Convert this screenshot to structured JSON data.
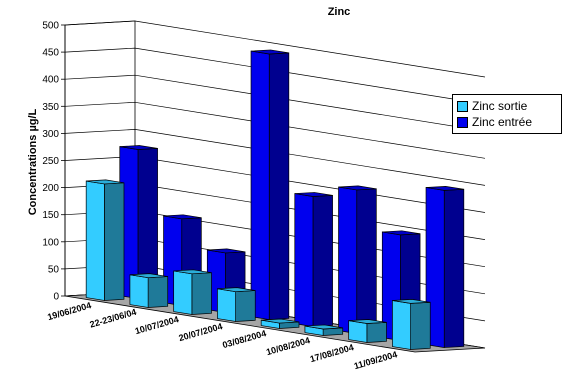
{
  "chart_data": {
    "type": "bar",
    "title": "Zinc",
    "xlabel": "",
    "ylabel": "Concentrations µg/L",
    "ylim": [
      0,
      500
    ],
    "yticks": [
      0,
      50,
      100,
      150,
      200,
      250,
      300,
      350,
      400,
      450,
      500
    ],
    "categories": [
      "19/06/2004",
      "22-23/06/04",
      "10/07/2004",
      "20/07/2004",
      "03/08/2004",
      "10/08/2004",
      "17/08/2004",
      "11/09/2004"
    ],
    "series": [
      {
        "name": "Zinc sortie",
        "color": "#33ccff",
        "values": [
          215,
          55,
          75,
          55,
          10,
          12,
          35,
          85
        ]
      },
      {
        "name": "Zinc entrée",
        "color": "#0000ee",
        "values": [
          275,
          160,
          110,
          490,
          240,
          265,
          195,
          290
        ]
      }
    ],
    "grid": true,
    "legend_position": "right",
    "style": "3d-clustered-column"
  }
}
